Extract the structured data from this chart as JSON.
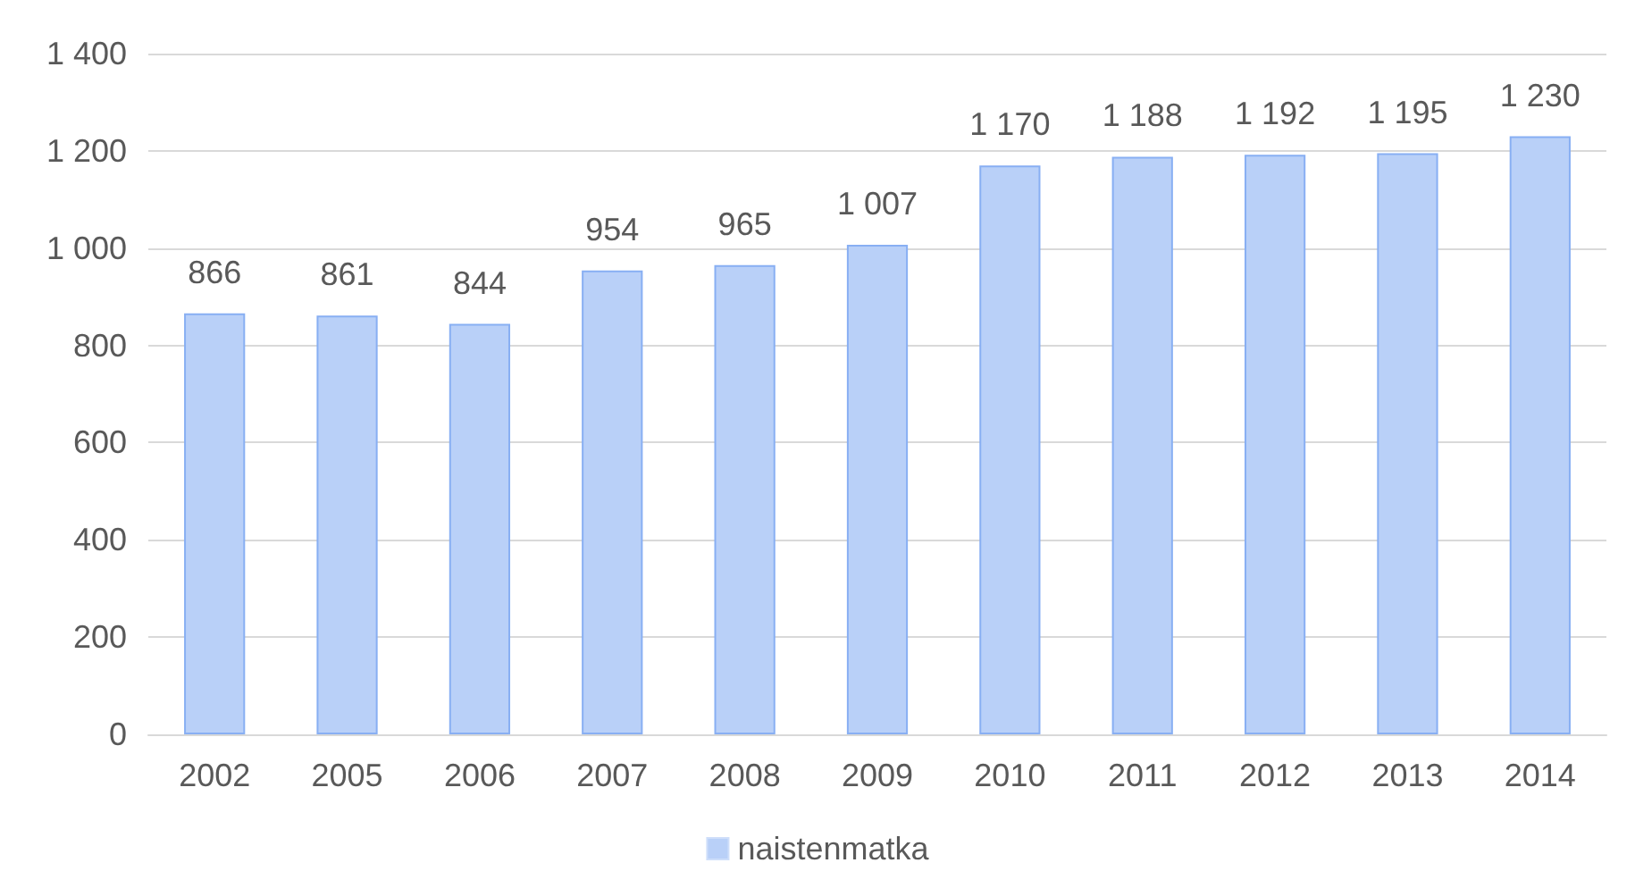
{
  "chart_data": {
    "type": "bar",
    "categories": [
      "2002",
      "2005",
      "2006",
      "2007",
      "2008",
      "2009",
      "2010",
      "2011",
      "2012",
      "2013",
      "2014"
    ],
    "series": [
      {
        "name": "naistenmatka",
        "color": "#b9d0f8",
        "values": [
          866,
          861,
          844,
          954,
          965,
          1007,
          1170,
          1188,
          1192,
          1195,
          1230
        ],
        "value_labels": [
          "866",
          "861",
          "844",
          "954",
          "965",
          "1 007",
          "1 170",
          "1 188",
          "1 192",
          "1 195",
          "1 230"
        ]
      }
    ],
    "ylim": [
      0,
      1400
    ],
    "yticks": [
      0,
      200,
      400,
      600,
      800,
      {
        "value": 1000,
        "label": "1 000"
      },
      {
        "value": 1200,
        "label": "1 200"
      },
      {
        "value": 1400,
        "label": "1 400"
      }
    ],
    "grid": "y",
    "legend": "bottom"
  }
}
